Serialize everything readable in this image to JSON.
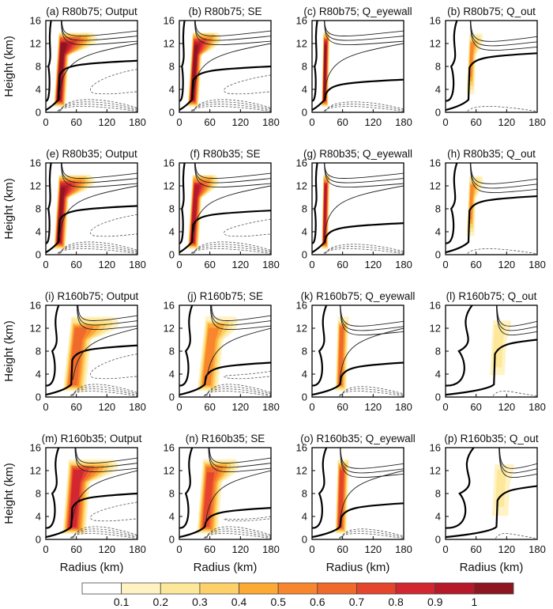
{
  "chart_data": {
    "type": "heatmap",
    "subtype": "radius-height cross sections with contour overlays (4x4 panel grid)",
    "xlabel": "Radius (km)",
    "ylabel": "Height (km)",
    "xlim": [
      0,
      180
    ],
    "ylim": [
      0,
      16
    ],
    "xticks": [
      0,
      60,
      120,
      180
    ],
    "yticks": [
      0,
      4,
      8,
      12,
      16
    ],
    "colorbar": {
      "levels": [
        0.1,
        0.2,
        0.3,
        0.4,
        0.5,
        0.6,
        0.7,
        0.8,
        0.9,
        1
      ],
      "tick_labels": [
        "0.1",
        "0.2",
        "0.3",
        "0.4",
        "0.5",
        "0.6",
        "0.7",
        "0.8",
        "0.9",
        "1"
      ],
      "colors": [
        "#ffffff",
        "#fff3c4",
        "#fde89a",
        "#fdd06a",
        "#fdaa35",
        "#f8862e",
        "#f06a2c",
        "#e5452d",
        "#d22630",
        "#b61a2a",
        "#8e1620"
      ],
      "orientation": "horizontal",
      "placement": "bottom"
    },
    "panels": [
      {
        "label": "(a) R80b75; Output",
        "case": "R80b75",
        "field": "Output",
        "rmw": 25,
        "tilt": 12,
        "peak": 1.05,
        "width": 14,
        "anvil": 60,
        "neutral_h": 8.5,
        "inner_h": 12
      },
      {
        "label": "(b) R80b75; SE",
        "case": "R80b75",
        "field": "SE",
        "rmw": 25,
        "tilt": 12,
        "peak": 1.0,
        "width": 13,
        "anvil": 40,
        "neutral_h": 7.5,
        "inner_h": 12
      },
      {
        "label": "(c) R80b75; Q_eyewall",
        "case": "R80b75",
        "field": "Q_eyewall",
        "rmw": 25,
        "tilt": 4,
        "peak": 1.0,
        "width": 8,
        "anvil": 0,
        "neutral_h": 5.2,
        "inner_h": 12
      },
      {
        "label": "(b) R80b75; Q_out",
        "case": "R80b75",
        "field": "Q_out",
        "rmw": 45,
        "tilt": 8,
        "peak": 0.5,
        "width": 10,
        "anvil": 15,
        "neutral_h": 9.8,
        "inner_h": 11
      },
      {
        "label": "(e) R80b35; Output",
        "case": "R80b35",
        "field": "Output",
        "rmw": 25,
        "tilt": 12,
        "peak": 1.0,
        "width": 14,
        "anvil": 55,
        "neutral_h": 8.0,
        "inner_h": 12
      },
      {
        "label": "(f) R80b35; SE",
        "case": "R80b35",
        "field": "SE",
        "rmw": 25,
        "tilt": 12,
        "peak": 0.95,
        "width": 13,
        "anvil": 35,
        "neutral_h": 7.2,
        "inner_h": 12
      },
      {
        "label": "(g) R80b35; Q_eyewall",
        "case": "R80b35",
        "field": "Q_eyewall",
        "rmw": 25,
        "tilt": 4,
        "peak": 0.95,
        "width": 8,
        "anvil": 0,
        "neutral_h": 5.0,
        "inner_h": 12
      },
      {
        "label": "(h) R80b35; Q_out",
        "case": "R80b35",
        "field": "Q_out",
        "rmw": 45,
        "tilt": 8,
        "peak": 0.5,
        "width": 10,
        "anvil": 15,
        "neutral_h": 9.7,
        "inner_h": 11
      },
      {
        "label": "(i) R160b75; Output",
        "case": "R160b75",
        "field": "Output",
        "rmw": 50,
        "tilt": 20,
        "peak": 0.65,
        "width": 28,
        "anvil": 60,
        "neutral_h": 8.5,
        "inner_h": 12
      },
      {
        "label": "(j) R160b75; SE",
        "case": "R160b75",
        "field": "SE",
        "rmw": 50,
        "tilt": 20,
        "peak": 0.55,
        "width": 26,
        "anvil": 30,
        "neutral_h": 5.5,
        "inner_h": 12
      },
      {
        "label": "(k) R160b75; Q_eyewall",
        "case": "R160b75",
        "field": "Q_eyewall",
        "rmw": 55,
        "tilt": 6,
        "peak": 0.6,
        "width": 14,
        "anvil": 0,
        "neutral_h": 5.5,
        "inner_h": 11
      },
      {
        "label": "(l) R160b75; Q_out",
        "case": "R160b75",
        "field": "Q_out",
        "rmw": 95,
        "tilt": 10,
        "peak": 0.25,
        "width": 22,
        "anvil": 10,
        "neutral_h": 9.5,
        "inner_h": 11
      },
      {
        "label": "(m) R160b35; Output",
        "case": "R160b35",
        "field": "Output",
        "rmw": 50,
        "tilt": 15,
        "peak": 0.85,
        "width": 28,
        "anvil": 60,
        "neutral_h": 7.5,
        "inner_h": 12
      },
      {
        "label": "(n) R160b35; SE",
        "case": "R160b35",
        "field": "SE",
        "rmw": 50,
        "tilt": 15,
        "peak": 0.7,
        "width": 26,
        "anvil": 35,
        "neutral_h": 5.0,
        "inner_h": 12
      },
      {
        "label": "(o) R160b35; Q_eyewall",
        "case": "R160b35",
        "field": "Q_eyewall",
        "rmw": 55,
        "tilt": 6,
        "peak": 0.75,
        "width": 14,
        "anvil": 0,
        "neutral_h": 5.8,
        "inner_h": 11
      },
      {
        "label": "(p) R160b35; Q_out",
        "case": "R160b35",
        "field": "Q_out",
        "rmw": 100,
        "tilt": 10,
        "peak": 0.2,
        "width": 26,
        "anvil": 10,
        "neutral_h": 8.8,
        "inner_h": 11
      }
    ]
  }
}
